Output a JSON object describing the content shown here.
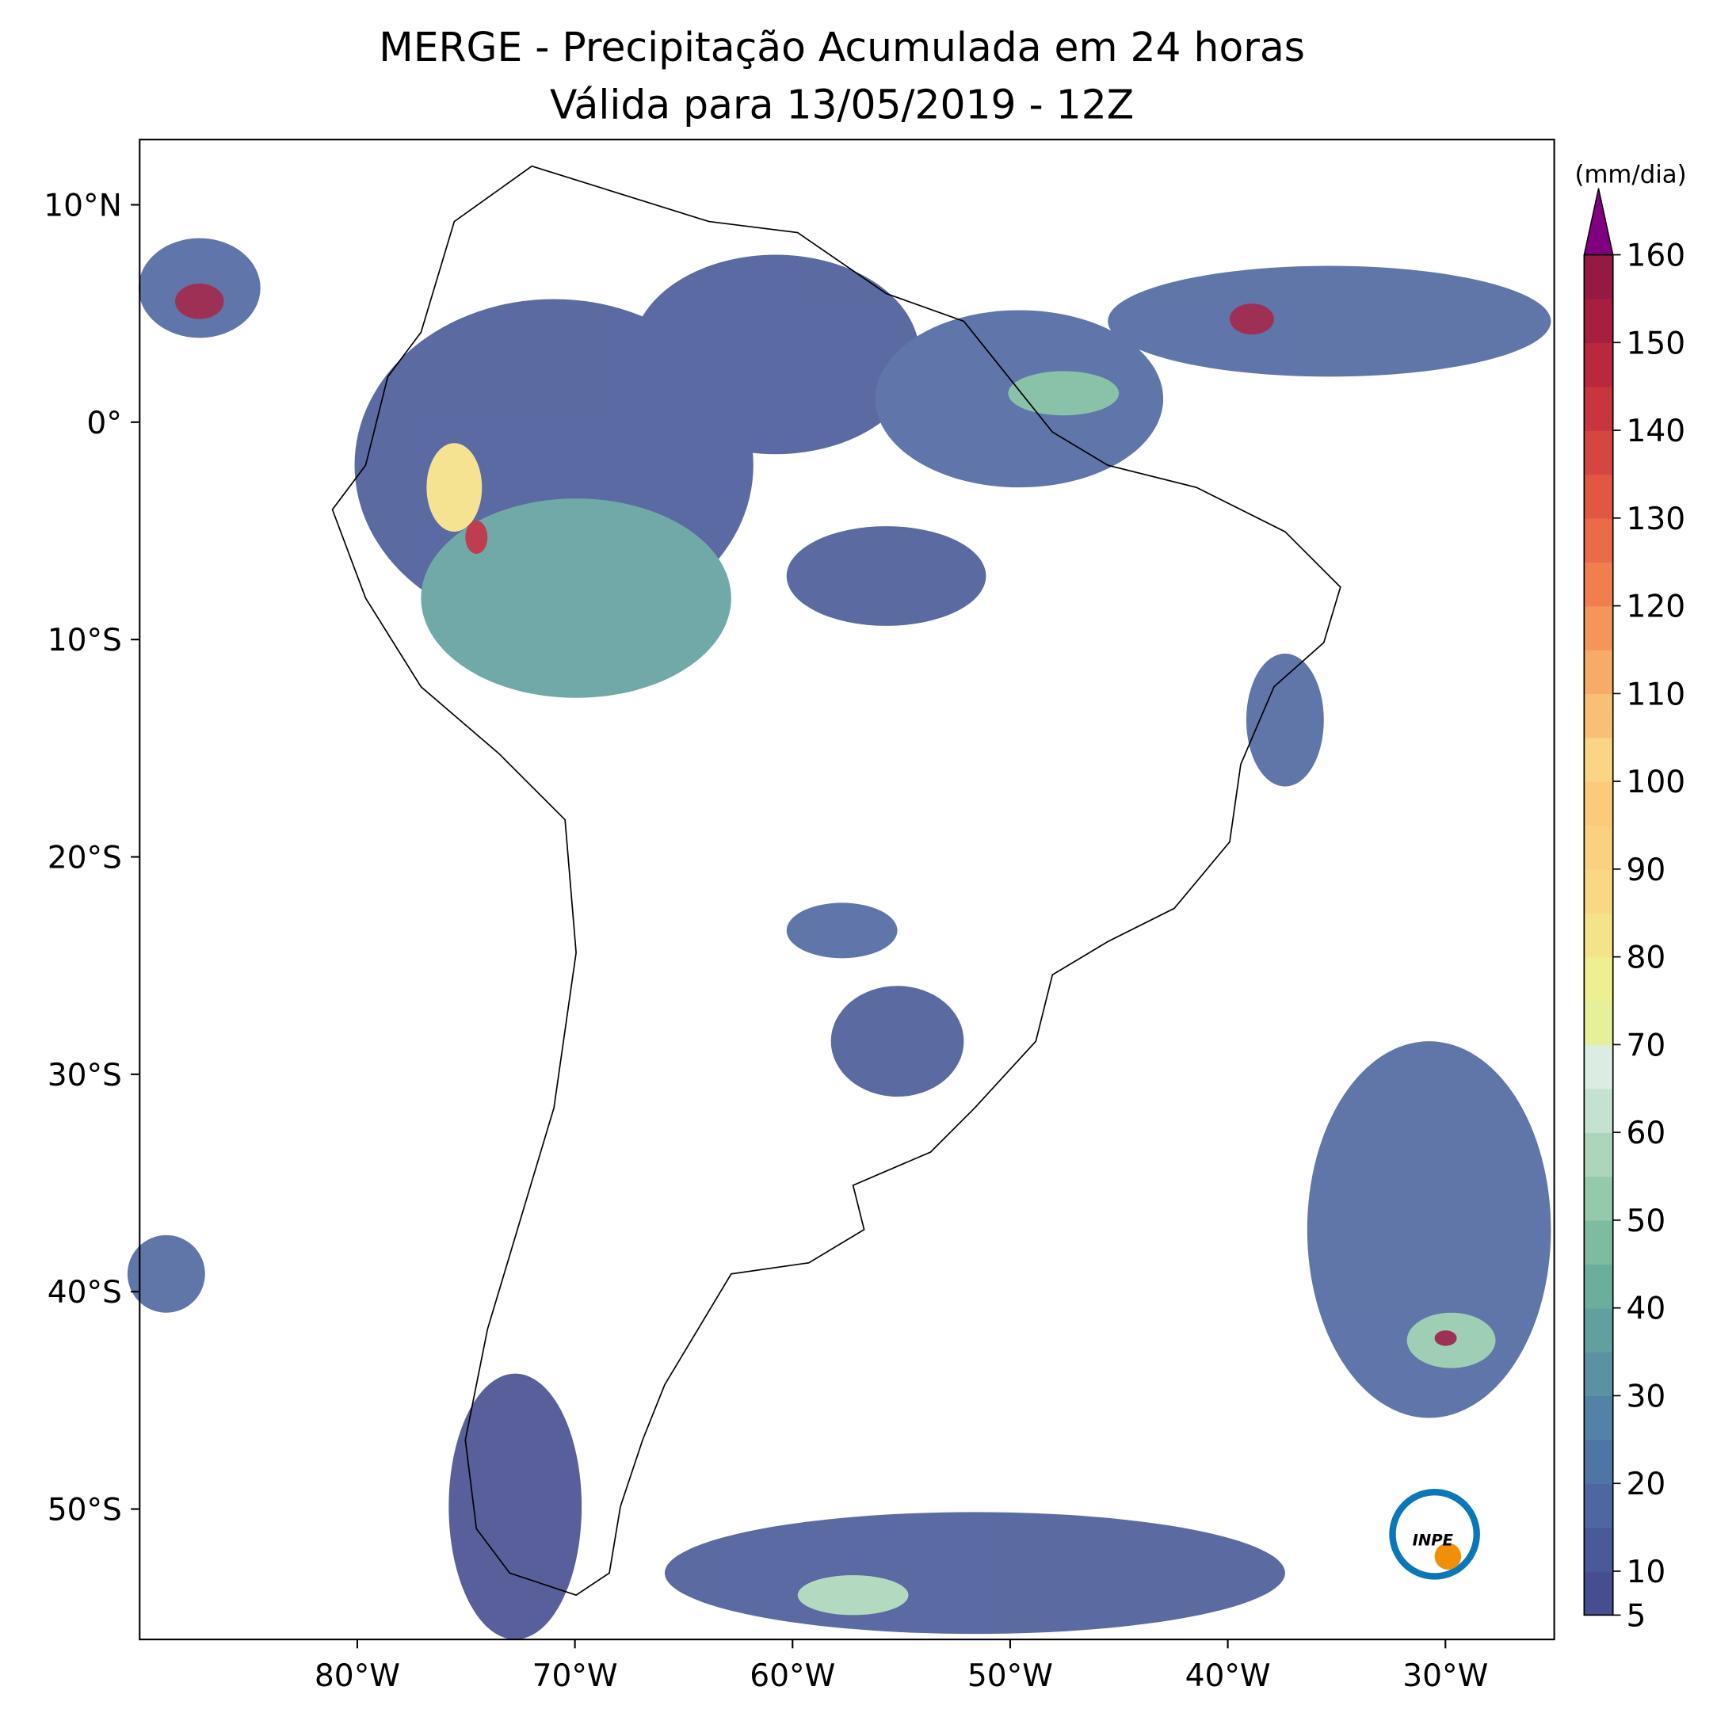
{
  "map": {
    "title": [
      "MERGE - Precipitação Acumulada em 24 horas",
      "Válida para 13/05/2019 - 12Z"
    ],
    "xlim": [
      -90,
      -25
    ],
    "ylim": [
      -56,
      13
    ],
    "xticks": [
      {
        "value": -80,
        "label": "80°W"
      },
      {
        "value": -70,
        "label": "70°W"
      },
      {
        "value": -60,
        "label": "60°W"
      },
      {
        "value": -50,
        "label": "50°W"
      },
      {
        "value": -40,
        "label": "40°W"
      },
      {
        "value": -30,
        "label": "30°W"
      }
    ],
    "yticks": [
      {
        "value": 10,
        "label": "10°N"
      },
      {
        "value": 0,
        "label": "0°"
      },
      {
        "value": -10,
        "label": "10°S"
      },
      {
        "value": -20,
        "label": "20°S"
      },
      {
        "value": -30,
        "label": "30°S"
      },
      {
        "value": -40,
        "label": "40°S"
      },
      {
        "value": -50,
        "label": "50°S"
      }
    ],
    "colorbar": {
      "label": "(mm/dia)",
      "lim": [
        5,
        160
      ],
      "step": 5,
      "ticks": [
        5,
        10,
        20,
        30,
        40,
        50,
        60,
        70,
        80,
        90,
        100,
        110,
        120,
        130,
        140,
        150,
        160
      ],
      "colors": [
        "#464e8f",
        "#4a5a98",
        "#4f67a0",
        "#4f75a4",
        "#5283a6",
        "#5a92a4",
        "#62a0a0",
        "#6cae9c",
        "#7dbc9f",
        "#94c9ab",
        "#acd5bb",
        "#c5e1cf",
        "#dbece2",
        "#e6f09a",
        "#eef08f",
        "#f4e487",
        "#f8d880",
        "#fad17c",
        "#fbcb79",
        "#fad583",
        "#f8c074",
        "#f6ab66",
        "#f49559",
        "#f17f4e",
        "#ea6b47",
        "#e05743",
        "#d44641",
        "#c7363f",
        "#b8293e",
        "#a71f40",
        "#951a43"
      ],
      "extend_color": "#800080"
    }
  }
}
